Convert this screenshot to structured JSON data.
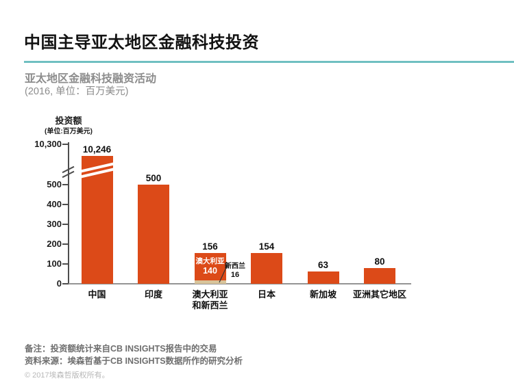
{
  "header": {
    "title": "中国主导亚太地区金融科技投资",
    "subtitle": "亚太地区金融科技融资活动",
    "period_unit": "(2016, 单位：百万美元)"
  },
  "chart_data": {
    "type": "bar",
    "title": "亚太地区金融科技融资活动",
    "year": "2016",
    "unit": "百万美元",
    "ylabel": "投资额",
    "ylabel_unit": "(单位:百万美元)",
    "categories": [
      "中国",
      "印度",
      "澳大利亚\n和新西兰",
      "日本",
      "新加坡",
      "亚洲其它地区"
    ],
    "values": [
      10246,
      500,
      156,
      154,
      63,
      80
    ],
    "value_labels": [
      "10,246",
      "500",
      "156",
      "154",
      "63",
      "80"
    ],
    "stack": {
      "category": "澳大利亚和新西兰",
      "segments": [
        {
          "name": "澳大利亚",
          "value": 140,
          "label_value": "140"
        },
        {
          "name": "新西兰",
          "value": 16,
          "label_value": "16"
        }
      ]
    },
    "y_ticks": [
      "10,300",
      "500",
      "400",
      "300",
      "200",
      "100",
      "0"
    ],
    "ylim": [
      0,
      10300
    ],
    "axis_break": {
      "between": [
        500,
        10300
      ]
    },
    "grid": false,
    "legend": "none",
    "colors": {
      "bar": "#dc4a18",
      "stack_segment": "#d8c49a",
      "accent_rule": "#6fbfc1",
      "axis": "#4d4d4d",
      "baseline": "#949494"
    }
  },
  "footer": {
    "note": "备注：投资额统计来自CB INSIGHTS报告中的交易",
    "source": "资料来源：埃森哲基于CB INSIGHTS数据所作的研究分析",
    "copyright": "© 2017埃森哲版权所有。"
  }
}
